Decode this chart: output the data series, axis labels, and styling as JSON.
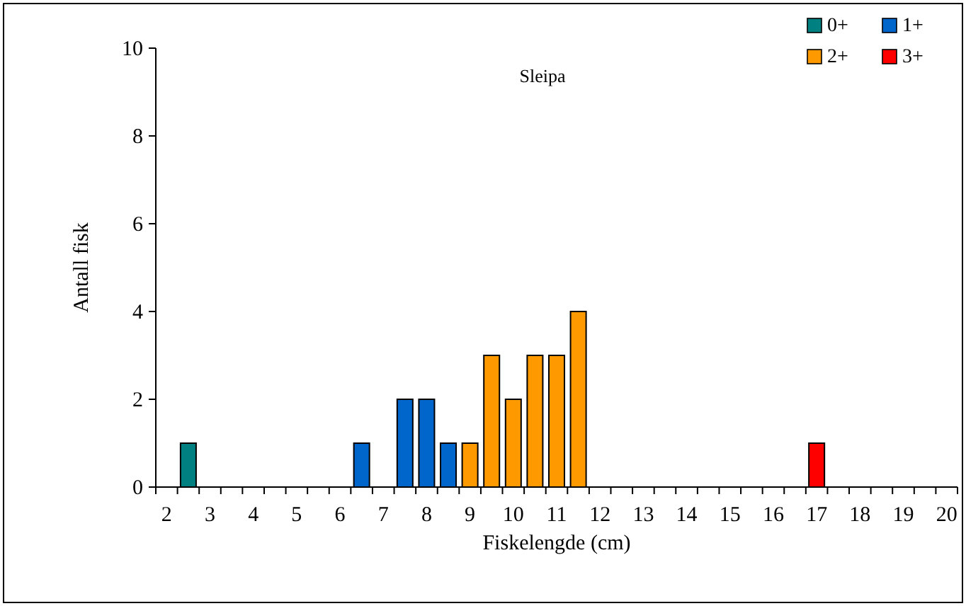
{
  "chart_data": {
    "type": "bar",
    "title": "Sleipa",
    "xlabel": "Fiskelengde (cm)",
    "ylabel": "Antall fisk",
    "categories": [
      "2",
      null,
      "3",
      null,
      "4",
      null,
      "5",
      null,
      "6",
      null,
      "7",
      null,
      "8",
      null,
      "9",
      null,
      "10",
      null,
      "11",
      null,
      "12",
      null,
      "13",
      null,
      "14",
      null,
      "15",
      null,
      "16",
      null,
      "17",
      null,
      "18",
      null,
      "19",
      null,
      "20"
    ],
    "series": [
      {
        "name": "0+",
        "color": "#008080",
        "values": [
          null,
          1,
          null,
          null,
          null,
          null,
          null,
          null,
          null,
          null,
          null,
          null,
          null,
          null,
          null,
          null,
          null,
          null,
          null,
          null,
          null,
          null,
          null,
          null,
          null,
          null,
          null,
          null,
          null,
          null,
          null,
          null,
          null,
          null,
          null,
          null,
          null
        ]
      },
      {
        "name": "1+",
        "color": "#0066cc",
        "values": [
          null,
          null,
          null,
          null,
          null,
          null,
          null,
          null,
          null,
          1,
          null,
          2,
          2,
          1,
          null,
          null,
          null,
          null,
          null,
          null,
          null,
          null,
          null,
          null,
          null,
          null,
          null,
          null,
          null,
          null,
          null,
          null,
          null,
          null,
          null,
          null,
          null
        ]
      },
      {
        "name": "2+",
        "color": "#ff9900",
        "values": [
          null,
          null,
          null,
          null,
          null,
          null,
          null,
          null,
          null,
          null,
          null,
          null,
          null,
          null,
          1,
          3,
          2,
          3,
          3,
          4,
          null,
          null,
          null,
          null,
          null,
          null,
          null,
          null,
          null,
          null,
          null,
          null,
          null,
          null,
          null,
          null,
          null
        ]
      },
      {
        "name": "3+",
        "color": "#ff0000",
        "values": [
          null,
          null,
          null,
          null,
          null,
          null,
          null,
          null,
          null,
          null,
          null,
          null,
          null,
          null,
          null,
          null,
          null,
          null,
          null,
          null,
          null,
          null,
          null,
          null,
          null,
          null,
          null,
          null,
          null,
          null,
          1,
          null,
          null,
          null,
          null,
          null,
          null
        ]
      }
    ],
    "ylim": [
      0,
      10
    ],
    "yticks": [
      0,
      2,
      4,
      6,
      8,
      10
    ],
    "grid": false,
    "legend": "top right"
  }
}
